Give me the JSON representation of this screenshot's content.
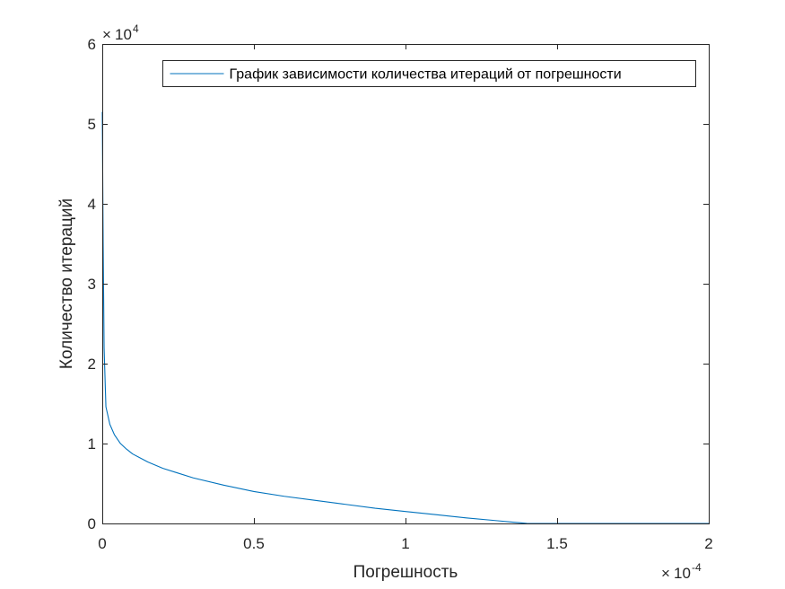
{
  "chart_data": {
    "type": "line",
    "title": "",
    "xlabel": "Погрешность",
    "ylabel": "Количество итераций",
    "x_exponent": "-4",
    "y_exponent": "4",
    "multiplier_base": "10",
    "xlim": [
      0,
      0.0002
    ],
    "ylim": [
      0,
      60000
    ],
    "x_ticks": [
      0,
      5e-05,
      0.0001,
      0.00015,
      0.0002
    ],
    "x_tick_labels": [
      "0",
      "0.5",
      "1",
      "1.5",
      "2"
    ],
    "y_ticks": [
      0,
      10000,
      20000,
      30000,
      40000,
      50000,
      60000
    ],
    "y_tick_labels": [
      "0",
      "1",
      "2",
      "3",
      "4",
      "5",
      "6"
    ],
    "grid": false,
    "legend_position": "top-right",
    "series": [
      {
        "name": "График зависимости количества итераций от погрешности",
        "color": "#0072BD",
        "x": [
          0,
          3e-07,
          6e-07,
          1.2e-06,
          2.5e-06,
          4e-06,
          6e-06,
          8e-06,
          1e-05,
          1.5e-05,
          2e-05,
          2.5e-05,
          3e-05,
          4e-05,
          5e-05,
          6e-05,
          7e-05,
          8e-05,
          9e-05,
          0.0001,
          0.00011,
          0.00012,
          0.00013,
          0.000135,
          0.000138,
          0.00014,
          0.000142,
          0.000145,
          0.00015,
          0.00016,
          0.00017,
          0.00018,
          0.00019,
          0.0002
        ],
        "values": [
          51500,
          35000,
          22000,
          14600,
          12400,
          11100,
          10000,
          9300,
          8700,
          7700,
          6900,
          6300,
          5700,
          4800,
          4000,
          3400,
          2900,
          2400,
          1900,
          1500,
          1100,
          700,
          350,
          180,
          80,
          10,
          0,
          0,
          0,
          0,
          0,
          0,
          0,
          0
        ]
      }
    ]
  }
}
